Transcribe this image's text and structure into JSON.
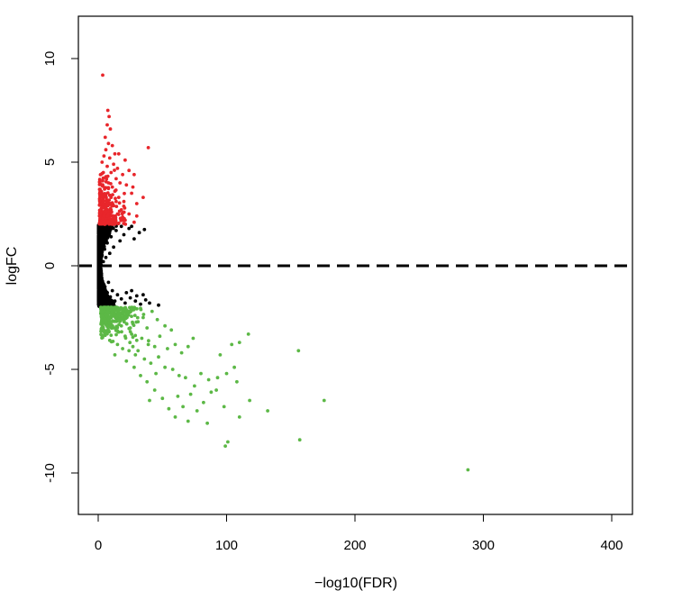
{
  "chart_data": {
    "type": "scatter",
    "title": "",
    "xlabel": "−log10(FDR)",
    "ylabel": "logFC",
    "xlim": [
      -15,
      415
    ],
    "ylim": [
      -12,
      12
    ],
    "x_ticks": [
      0,
      100,
      200,
      300,
      400
    ],
    "y_ticks": [
      10,
      5,
      0,
      -5,
      -10
    ],
    "grid": false,
    "legend": "none",
    "reference_line": {
      "y": 0,
      "style": "dashed",
      "color": "#000000"
    },
    "colors": {
      "up": "#e8262b",
      "not_significant": "#000000",
      "down": "#5cb846"
    },
    "thresholds": {
      "logFC": 2
    },
    "series": [
      {
        "color_key": "up",
        "points": [
          [
            3.5,
            9.2
          ],
          [
            7.5,
            7.5
          ],
          [
            8.5,
            7.2
          ],
          [
            7.0,
            6.8
          ],
          [
            9.5,
            6.6
          ],
          [
            5.5,
            6.2
          ],
          [
            39,
            5.7
          ],
          [
            8,
            5.9
          ],
          [
            11,
            5.8
          ],
          [
            6,
            5.6
          ],
          [
            13,
            5.4
          ],
          [
            16,
            5.4
          ],
          [
            4.5,
            5.3
          ],
          [
            9,
            5.2
          ],
          [
            21,
            5.1
          ],
          [
            3,
            5.0
          ],
          [
            12,
            4.9
          ],
          [
            7,
            4.8
          ],
          [
            15,
            4.7
          ],
          [
            24,
            4.6
          ],
          [
            4,
            4.5
          ],
          [
            10,
            4.5
          ],
          [
            19,
            4.4
          ],
          [
            6,
            4.3
          ],
          [
            28,
            4.4
          ],
          [
            14,
            4.2
          ],
          [
            3.5,
            4.1
          ],
          [
            8,
            4.0
          ],
          [
            17,
            4.0
          ],
          [
            22,
            3.9
          ],
          [
            11,
            3.8
          ],
          [
            5,
            3.7
          ],
          [
            13,
            3.6
          ],
          [
            35,
            3.3
          ],
          [
            26,
            3.5
          ],
          [
            9,
            3.4
          ],
          [
            16,
            3.3
          ],
          [
            4,
            3.2
          ],
          [
            20,
            3.1
          ],
          [
            7,
            3.0
          ],
          [
            12,
            2.9
          ],
          [
            30,
            3.0
          ],
          [
            3,
            2.8
          ],
          [
            10,
            2.7
          ],
          [
            18,
            2.7
          ],
          [
            6,
            2.6
          ],
          [
            15,
            2.5
          ],
          [
            24,
            2.5
          ],
          [
            4.5,
            2.4
          ],
          [
            9,
            2.3
          ],
          [
            13,
            2.2
          ],
          [
            21,
            2.2
          ],
          [
            3.5,
            2.1
          ],
          [
            8,
            2.1
          ],
          [
            16,
            2.05
          ],
          [
            28,
            2.1
          ],
          [
            11,
            2.0
          ],
          [
            5,
            2.0
          ],
          [
            30,
            2.4
          ],
          [
            19,
            2.35
          ],
          [
            14,
            3.1
          ],
          [
            27,
            3.8
          ],
          [
            10,
            3.3
          ]
        ]
      },
      {
        "color_key": "not_significant",
        "points": [
          [
            32,
            1.6
          ],
          [
            36,
            1.75
          ],
          [
            28,
            1.3
          ],
          [
            24,
            1.8
          ],
          [
            20,
            1.5
          ],
          [
            17,
            1.2
          ],
          [
            14,
            1.7
          ],
          [
            12,
            0.9
          ],
          [
            10,
            1.4
          ],
          [
            9,
            0.6
          ],
          [
            7,
            1.1
          ],
          [
            6,
            0.4
          ],
          [
            5,
            0.8
          ],
          [
            4,
            0.2
          ],
          [
            3,
            0.5
          ],
          [
            2,
            0.1
          ],
          [
            1.5,
            0.3
          ],
          [
            1,
            0.05
          ],
          [
            0.8,
            -0.2
          ],
          [
            1.2,
            -0.4
          ],
          [
            2.5,
            -0.6
          ],
          [
            3.5,
            -0.9
          ],
          [
            5,
            -1.1
          ],
          [
            6.5,
            -1.3
          ],
          [
            8,
            -0.8
          ],
          [
            9.5,
            -1.5
          ],
          [
            11,
            -1.2
          ],
          [
            13,
            -1.7
          ],
          [
            15,
            -1.4
          ],
          [
            18,
            -1.6
          ],
          [
            21,
            -1.8
          ],
          [
            25,
            -1.55
          ],
          [
            29,
            -1.7
          ],
          [
            33,
            -1.85
          ],
          [
            37,
            -1.65
          ],
          [
            47,
            -1.9
          ],
          [
            40,
            -1.8
          ],
          [
            22,
            -1.3
          ],
          [
            26,
            -1.2
          ],
          [
            30,
            -1.45
          ],
          [
            35,
            -1.4
          ],
          [
            18,
            1.9
          ],
          [
            26,
            1.9
          ]
        ]
      },
      {
        "color_key": "down",
        "points": [
          [
            5,
            -2.1
          ],
          [
            8,
            -2.3
          ],
          [
            11,
            -2.2
          ],
          [
            14,
            -2.5
          ],
          [
            17,
            -2.4
          ],
          [
            20,
            -2.6
          ],
          [
            23,
            -2.3
          ],
          [
            27,
            -2.8
          ],
          [
            31,
            -2.7
          ],
          [
            35,
            -2.5
          ],
          [
            38,
            -3.0
          ],
          [
            42,
            -2.2
          ],
          [
            46,
            -2.6
          ],
          [
            52,
            -2.9
          ],
          [
            57,
            -3.1
          ],
          [
            7,
            -2.9
          ],
          [
            12,
            -3.0
          ],
          [
            16,
            -3.2
          ],
          [
            21,
            -3.4
          ],
          [
            26,
            -3.3
          ],
          [
            30,
            -3.6
          ],
          [
            34,
            -3.5
          ],
          [
            39,
            -3.8
          ],
          [
            44,
            -3.9
          ],
          [
            48,
            -3.4
          ],
          [
            54,
            -4.0
          ],
          [
            60,
            -3.8
          ],
          [
            65,
            -4.2
          ],
          [
            70,
            -3.9
          ],
          [
            74,
            -3.5
          ],
          [
            9,
            -3.6
          ],
          [
            15,
            -3.8
          ],
          [
            19,
            -4.0
          ],
          [
            24,
            -4.1
          ],
          [
            29,
            -4.3
          ],
          [
            36,
            -4.5
          ],
          [
            41,
            -4.7
          ],
          [
            47,
            -4.4
          ],
          [
            52,
            -4.9
          ],
          [
            58,
            -5.0
          ],
          [
            63,
            -5.3
          ],
          [
            68,
            -5.4
          ],
          [
            75,
            -5.8
          ],
          [
            80,
            -5.2
          ],
          [
            86,
            -5.5
          ],
          [
            93,
            -5.4
          ],
          [
            100,
            -5.2
          ],
          [
            106,
            -4.9
          ],
          [
            110,
            -3.7
          ],
          [
            117,
            -3.3
          ],
          [
            104,
            -3.8
          ],
          [
            95,
            -4.3
          ],
          [
            88,
            -6.1
          ],
          [
            82,
            -6.6
          ],
          [
            77,
            -7.0
          ],
          [
            72,
            -6.2
          ],
          [
            66,
            -6.8
          ],
          [
            60,
            -7.3
          ],
          [
            55,
            -6.9
          ],
          [
            50,
            -6.4
          ],
          [
            44,
            -6.0
          ],
          [
            38,
            -5.6
          ],
          [
            33,
            -5.3
          ],
          [
            28,
            -4.9
          ],
          [
            22,
            -4.6
          ],
          [
            13,
            -4.3
          ],
          [
            18,
            -2.9
          ],
          [
            25,
            -3.0
          ],
          [
            156,
            -4.1
          ],
          [
            176,
            -6.5
          ],
          [
            132,
            -7.0
          ],
          [
            118,
            -6.5
          ],
          [
            108,
            -5.6
          ],
          [
            98,
            -6.8
          ],
          [
            92,
            -6.0
          ],
          [
            85,
            -7.6
          ],
          [
            101,
            -8.5
          ],
          [
            157,
            -8.4
          ],
          [
            99,
            -8.7
          ],
          [
            288,
            -9.85
          ],
          [
            110,
            -7.3
          ],
          [
            70,
            -7.5
          ],
          [
            62,
            -6.3
          ],
          [
            45,
            -5.2
          ],
          [
            40,
            -6.5
          ],
          [
            31,
            -4.1
          ],
          [
            27,
            -3.9
          ],
          [
            10,
            -2.5
          ],
          [
            6,
            -3.3
          ],
          [
            3,
            -2.2
          ]
        ]
      }
    ]
  }
}
